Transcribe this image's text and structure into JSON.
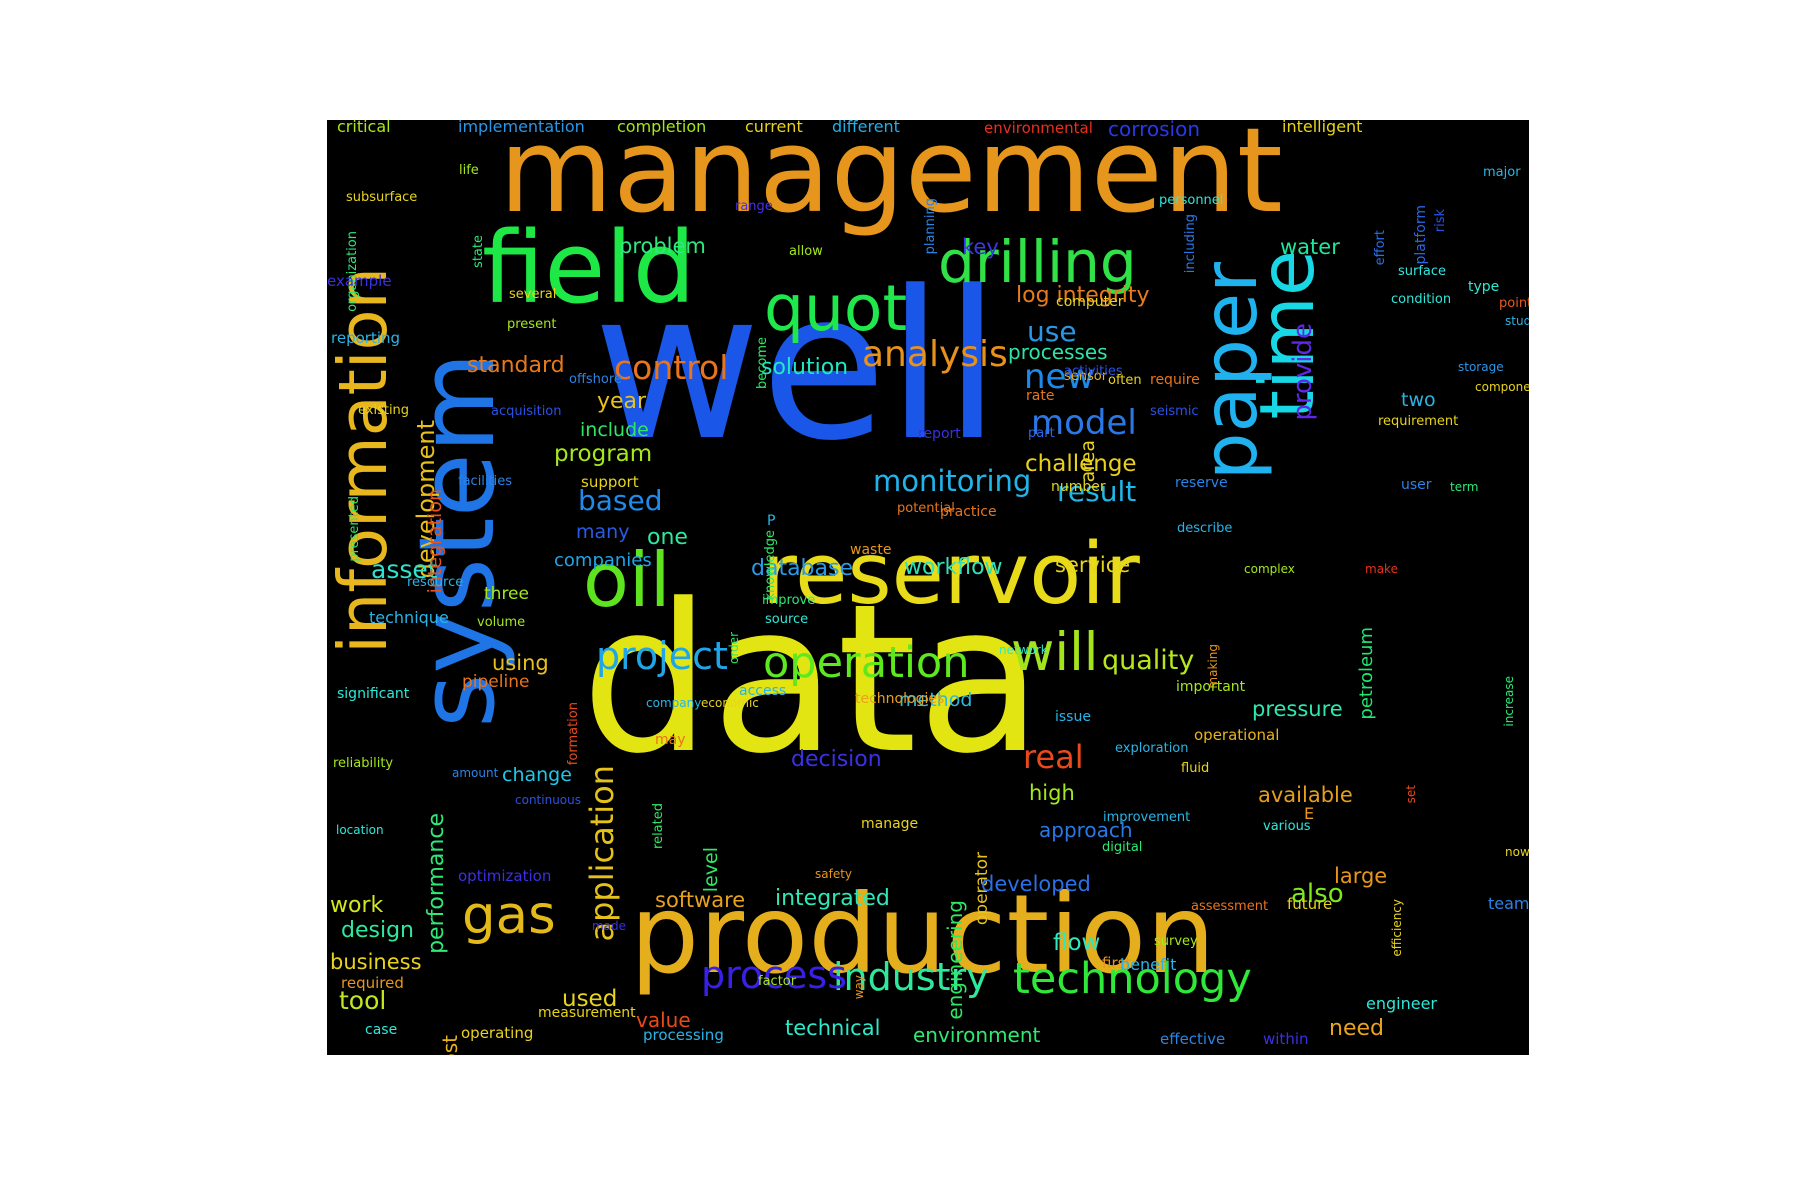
{
  "words": [
    {
      "text": "well",
      "color": "#1a56e8"
    },
    {
      "text": "data",
      "color": "#e2e512"
    },
    {
      "text": "management",
      "color": "#e6961c"
    },
    {
      "text": "production",
      "color": "#e4ae1c"
    },
    {
      "text": "system",
      "color": "#1f75e6"
    },
    {
      "text": "information",
      "color": "#e8b71e"
    },
    {
      "text": "field",
      "color": "#1ee845"
    },
    {
      "text": "time",
      "color": "#18d8e6"
    },
    {
      "text": "reservoir",
      "color": "#e8dc1a"
    },
    {
      "text": "paper",
      "color": "#20b2ee"
    },
    {
      "text": "oil",
      "color": "#5ee41e"
    },
    {
      "text": "quot",
      "color": "#1ee84c"
    },
    {
      "text": "drilling",
      "color": "#30e248"
    },
    {
      "text": "gas",
      "color": "#e4ba1a"
    },
    {
      "text": "will",
      "color": "#a4e41c"
    },
    {
      "text": "operation",
      "color": "#5ee81e"
    },
    {
      "text": "technology",
      "color": "#30e83a"
    },
    {
      "text": "industry",
      "color": "#2ee89c"
    },
    {
      "text": "process",
      "color": "#3820e8"
    },
    {
      "text": "project",
      "color": "#20a6e8"
    },
    {
      "text": "analysis",
      "color": "#e8921c"
    },
    {
      "text": "control",
      "color": "#e8741c"
    },
    {
      "text": "model",
      "color": "#2a78e6"
    },
    {
      "text": "new",
      "color": "#1e8ae8"
    },
    {
      "text": "monitoring",
      "color": "#20b4e8"
    },
    {
      "text": "application",
      "color": "#e4c21a"
    },
    {
      "text": "development",
      "color": "#e8c018"
    },
    {
      "text": "provide",
      "color": "#5e28e6"
    },
    {
      "text": "quality",
      "color": "#b8e81c"
    },
    {
      "text": "result",
      "color": "#20b8e8"
    },
    {
      "text": "log integrity",
      "color": "#e87a1c"
    },
    {
      "text": "real",
      "color": "#e84a1c"
    },
    {
      "text": "use",
      "color": "#2a96e6"
    },
    {
      "text": "processes",
      "color": "#30e2a8"
    },
    {
      "text": "standard",
      "color": "#e8781c"
    },
    {
      "text": "solution",
      "color": "#1ee8c8"
    },
    {
      "text": "problem",
      "color": "#2ee880"
    },
    {
      "text": "key",
      "color": "#3a38e6"
    },
    {
      "text": "water",
      "color": "#1ee8a0"
    },
    {
      "text": "challenge",
      "color": "#e8d01c"
    },
    {
      "text": "based",
      "color": "#208ae8"
    },
    {
      "text": "program",
      "color": "#a6e81c"
    },
    {
      "text": "include",
      "color": "#2ee864"
    },
    {
      "text": "year",
      "color": "#e8c21c"
    },
    {
      "text": "one",
      "color": "#2ee89e"
    },
    {
      "text": "many",
      "color": "#2a5ae6"
    },
    {
      "text": "asset",
      "color": "#30e2ce"
    },
    {
      "text": "database",
      "color": "#2a9ae6"
    },
    {
      "text": "workflow",
      "color": "#30e2b8"
    },
    {
      "text": "service",
      "color": "#e8d41c"
    },
    {
      "text": "companies",
      "color": "#20a6e8"
    },
    {
      "text": "integration",
      "color": "#e8501c"
    },
    {
      "text": "performance",
      "color": "#2ee878"
    },
    {
      "text": "using",
      "color": "#e8c01c"
    },
    {
      "text": "pipeline",
      "color": "#e8741c"
    },
    {
      "text": "three",
      "color": "#a4e81c"
    },
    {
      "text": "technique",
      "color": "#2ab4e6"
    },
    {
      "text": "decision",
      "color": "#3a30e6"
    },
    {
      "text": "change",
      "color": "#20c8e8"
    },
    {
      "text": "level",
      "color": "#2ee868"
    },
    {
      "text": "engineering",
      "color": "#2ee860"
    },
    {
      "text": "operator",
      "color": "#e8c21c"
    },
    {
      "text": "high",
      "color": "#a4e81c"
    },
    {
      "text": "approach",
      "color": "#2a78e6"
    },
    {
      "text": "developed",
      "color": "#2a70e6"
    },
    {
      "text": "integrated",
      "color": "#2ee8b8"
    },
    {
      "text": "software",
      "color": "#e8a21c"
    },
    {
      "text": "also",
      "color": "#7ee81c"
    },
    {
      "text": "available",
      "color": "#e89e1c"
    },
    {
      "text": "pressure",
      "color": "#2ee8b0"
    },
    {
      "text": "method",
      "color": "#2ab8e6"
    },
    {
      "text": "petroleum",
      "color": "#1ee870"
    },
    {
      "text": "work",
      "color": "#d4e81c"
    },
    {
      "text": "design",
      "color": "#2ee8a0"
    },
    {
      "text": "business",
      "color": "#e8d41c"
    },
    {
      "text": "tool",
      "color": "#c0e81c"
    },
    {
      "text": "cost",
      "color": "#e8b41c"
    },
    {
      "text": "used",
      "color": "#e8d41c"
    },
    {
      "text": "value",
      "color": "#e84a1c"
    },
    {
      "text": "technical",
      "color": "#2ee8c8"
    },
    {
      "text": "environment",
      "color": "#2ee870"
    },
    {
      "text": "flow",
      "color": "#2ee8c0"
    },
    {
      "text": "need",
      "color": "#e8a41c"
    },
    {
      "text": "large",
      "color": "#e8961c"
    },
    {
      "text": "two",
      "color": "#2ab4e6"
    },
    {
      "text": "critical",
      "color": "#a8e81c"
    },
    {
      "text": "implementation",
      "color": "#2a96e6"
    },
    {
      "text": "completion",
      "color": "#a4e81c"
    },
    {
      "text": "current",
      "color": "#e8d21c"
    },
    {
      "text": "different",
      "color": "#20b0e8"
    },
    {
      "text": "environmental",
      "color": "#e8301c"
    },
    {
      "text": "corrosion",
      "color": "#2a38e6"
    },
    {
      "text": "intelligent",
      "color": "#e8d41c"
    },
    {
      "text": "platform",
      "color": "#2a66e6"
    },
    {
      "text": "major",
      "color": "#2ab4e6"
    },
    {
      "text": "risk",
      "color": "#2a52e6"
    },
    {
      "text": "effort",
      "color": "#2a70e6"
    },
    {
      "text": "organization",
      "color": "#2ee878"
    },
    {
      "text": "life",
      "color": "#a4e81c"
    },
    {
      "text": "subsurface",
      "color": "#e8d41c"
    },
    {
      "text": "state",
      "color": "#2ee878"
    },
    {
      "text": "range",
      "color": "#4a30e6"
    },
    {
      "text": "planning",
      "color": "#2a84e6"
    },
    {
      "text": "including",
      "color": "#2a78e6"
    },
    {
      "text": "personnel",
      "color": "#2ee8d8"
    },
    {
      "text": "allow",
      "color": "#a4e81c"
    },
    {
      "text": "example",
      "color": "#3a30e6"
    },
    {
      "text": "several",
      "color": "#e8d41c"
    },
    {
      "text": "present",
      "color": "#a4e81c"
    },
    {
      "text": "become",
      "color": "#2ee868"
    },
    {
      "text": "computer",
      "color": "#e8d41c"
    },
    {
      "text": "condition",
      "color": "#2ee8d8"
    },
    {
      "text": "surface",
      "color": "#2ee8e0"
    },
    {
      "text": "type",
      "color": "#2ee8d0"
    },
    {
      "text": "point",
      "color": "#e85a1c"
    },
    {
      "text": "study",
      "color": "#2ab4e6"
    },
    {
      "text": "storage",
      "color": "#2a96e6"
    },
    {
      "text": "component",
      "color": "#e8d41c"
    },
    {
      "text": "reporting",
      "color": "#2ab4e6"
    },
    {
      "text": "offshore",
      "color": "#2a84e6"
    },
    {
      "text": "existing",
      "color": "#e8d41c"
    },
    {
      "text": "presented",
      "color": "#2ee868"
    },
    {
      "text": "acquisition",
      "color": "#2a52e6"
    },
    {
      "text": "facilities",
      "color": "#2a84e6"
    },
    {
      "text": "support",
      "color": "#e8d41c"
    },
    {
      "text": "sensor",
      "color": "#e8b41c"
    },
    {
      "text": "activities",
      "color": "#2a52e6"
    },
    {
      "text": "often",
      "color": "#e8d41c"
    },
    {
      "text": "seismic",
      "color": "#2a52e6"
    },
    {
      "text": "require",
      "color": "#e8741c"
    },
    {
      "text": "rate",
      "color": "#e8741c"
    },
    {
      "text": "requirement",
      "color": "#e8d41c"
    },
    {
      "text": "area",
      "color": "#e8d41c"
    },
    {
      "text": "report",
      "color": "#3a30e6"
    },
    {
      "text": "part",
      "color": "#2a66e6"
    },
    {
      "text": "number",
      "color": "#e8d41c"
    },
    {
      "text": "reserve",
      "color": "#2a84e6"
    },
    {
      "text": "user",
      "color": "#2a84e6"
    },
    {
      "text": "term",
      "color": "#2ee878"
    },
    {
      "text": "knowledge",
      "color": "#2ee868"
    },
    {
      "text": "potential",
      "color": "#e8741c"
    },
    {
      "text": "practice",
      "color": "#e8741c"
    },
    {
      "text": "describe",
      "color": "#2ab4e6"
    },
    {
      "text": "P",
      "color": "#2ab4e6"
    },
    {
      "text": "waste",
      "color": "#e8961c"
    },
    {
      "text": "complex",
      "color": "#a4e81c"
    },
    {
      "text": "make",
      "color": "#e8301c"
    },
    {
      "text": "resource",
      "color": "#2ab4e6"
    },
    {
      "text": "volume",
      "color": "#a4e81c"
    },
    {
      "text": "order",
      "color": "#2ee868"
    },
    {
      "text": "improve",
      "color": "#2ee878"
    },
    {
      "text": "source",
      "color": "#2ee8d8"
    },
    {
      "text": "making",
      "color": "#e8961c"
    },
    {
      "text": "increase",
      "color": "#2ee878"
    },
    {
      "text": "significant",
      "color": "#2ee8d8"
    },
    {
      "text": "formation",
      "color": "#e84a1c"
    },
    {
      "text": "company",
      "color": "#2ab4e6"
    },
    {
      "text": "economic",
      "color": "#e8d41c"
    },
    {
      "text": "access",
      "color": "#2ab4e6"
    },
    {
      "text": "technologies",
      "color": "#e8a21c"
    },
    {
      "text": "network",
      "color": "#2ee8c8"
    },
    {
      "text": "important",
      "color": "#a4e81c"
    },
    {
      "text": "operational",
      "color": "#e8b41c"
    },
    {
      "text": "issue",
      "color": "#2ab4e6"
    },
    {
      "text": "exploration",
      "color": "#2ab4e6"
    },
    {
      "text": "may",
      "color": "#e8741c"
    },
    {
      "text": "fluid",
      "color": "#e8d41c"
    },
    {
      "text": "reliability",
      "color": "#a4e81c"
    },
    {
      "text": "amount",
      "color": "#2a84e6"
    },
    {
      "text": "continuous",
      "color": "#2a52e6"
    },
    {
      "text": "set",
      "color": "#e84a1c"
    },
    {
      "text": "E",
      "color": "#e8961c"
    },
    {
      "text": "location",
      "color": "#2ee8d8"
    },
    {
      "text": "improvement",
      "color": "#2ab4e6"
    },
    {
      "text": "manage",
      "color": "#e8d41c"
    },
    {
      "text": "various",
      "color": "#2ee8d8"
    },
    {
      "text": "digital",
      "color": "#2ee878"
    },
    {
      "text": "related",
      "color": "#2ee868"
    },
    {
      "text": "now",
      "color": "#e8d41c"
    },
    {
      "text": "optimization",
      "color": "#3a30e6"
    },
    {
      "text": "safety",
      "color": "#e8961c"
    },
    {
      "text": "assessment",
      "color": "#e8741c"
    },
    {
      "text": "future",
      "color": "#e8d41c"
    },
    {
      "text": "team",
      "color": "#2a84e6"
    },
    {
      "text": "made",
      "color": "#3a30e6"
    },
    {
      "text": "efficiency",
      "color": "#e8d41c"
    },
    {
      "text": "survey",
      "color": "#a4e81c"
    },
    {
      "text": "first",
      "color": "#e8961c"
    },
    {
      "text": "benefit",
      "color": "#2ab4e6"
    },
    {
      "text": "required",
      "color": "#e8961c"
    },
    {
      "text": "way",
      "color": "#e8961c"
    },
    {
      "text": "factor",
      "color": "#a4e81c"
    },
    {
      "text": "engineer",
      "color": "#2ee8d8"
    },
    {
      "text": "measurement",
      "color": "#e8d41c"
    },
    {
      "text": "case",
      "color": "#2ee8d8"
    },
    {
      "text": "operating",
      "color": "#e8d41c"
    },
    {
      "text": "processing",
      "color": "#2ab4e6"
    },
    {
      "text": "effective",
      "color": "#2a84e6"
    },
    {
      "text": "within",
      "color": "#3a30e6"
    }
  ]
}
